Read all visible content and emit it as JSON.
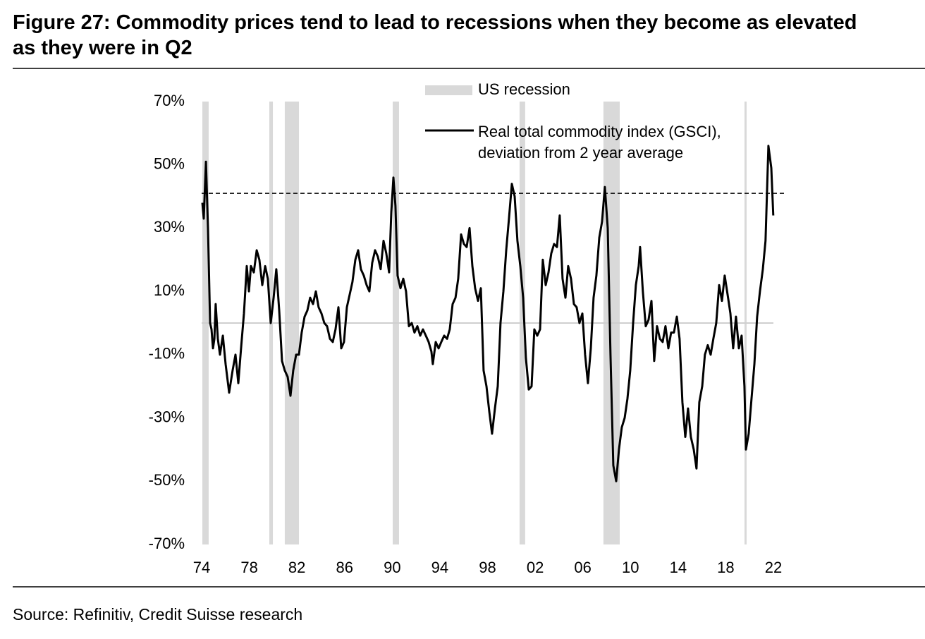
{
  "chart_data": {
    "type": "line",
    "title": "Figure 27: Commodity prices tend to lead to recessions when they become as elevated as they were in Q2",
    "source": "Source: Refinitiv, Credit Suisse research",
    "xlim": [
      1974,
      2022
    ],
    "ylim": [
      -70,
      70
    ],
    "xticks": [
      {
        "value": 1974,
        "label": "74"
      },
      {
        "value": 1978,
        "label": "78"
      },
      {
        "value": 1982,
        "label": "82"
      },
      {
        "value": 1986,
        "label": "86"
      },
      {
        "value": 1990,
        "label": "90"
      },
      {
        "value": 1994,
        "label": "94"
      },
      {
        "value": 1998,
        "label": "98"
      },
      {
        "value": 2002,
        "label": "02"
      },
      {
        "value": 2006,
        "label": "06"
      },
      {
        "value": 2010,
        "label": "10"
      },
      {
        "value": 2014,
        "label": "14"
      },
      {
        "value": 2018,
        "label": "18"
      },
      {
        "value": 2022,
        "label": "22"
      }
    ],
    "yticks": [
      {
        "value": 70,
        "label": "70%"
      },
      {
        "value": 50,
        "label": "50%"
      },
      {
        "value": 30,
        "label": "30%"
      },
      {
        "value": 10,
        "label": "10%"
      },
      {
        "value": -10,
        "label": "-10%"
      },
      {
        "value": -30,
        "label": "-30%"
      },
      {
        "value": -50,
        "label": "-50%"
      },
      {
        "value": -70,
        "label": "-70%"
      }
    ],
    "recessions": {
      "name": "US recession",
      "color": "#d9d9d9",
      "periods": [
        [
          1974.06,
          1974.59
        ],
        [
          1979.68,
          1979.98
        ],
        [
          1980.98,
          1982.17
        ],
        [
          1990.04,
          1990.57
        ],
        [
          2000.69,
          2001.16
        ],
        [
          2007.73,
          2009.1
        ],
        [
          2019.57,
          2019.75
        ]
      ]
    },
    "reference_lines": [
      {
        "value": 0,
        "style": "solid",
        "color": "#cfcfcf"
      },
      {
        "value": 41,
        "style": "dashed",
        "color": "#000000"
      }
    ],
    "series": [
      {
        "name": "Real total commodity index (GSCI), deviation from 2 year average",
        "color": "#000000",
        "x": [
          1974.06,
          1974.18,
          1974.36,
          1974.53,
          1974.71,
          1974.83,
          1974.95,
          1975.07,
          1975.18,
          1975.36,
          1975.54,
          1975.78,
          1976.01,
          1976.31,
          1976.6,
          1976.84,
          1977.08,
          1977.31,
          1977.55,
          1977.79,
          1977.97,
          1978.14,
          1978.38,
          1978.62,
          1978.85,
          1979.09,
          1979.33,
          1979.56,
          1979.8,
          1980.04,
          1980.27,
          1980.51,
          1980.75,
          1980.98,
          1981.22,
          1981.46,
          1981.69,
          1981.93,
          1982.17,
          1982.4,
          1982.64,
          1982.88,
          1983.11,
          1983.35,
          1983.59,
          1983.82,
          1984.06,
          1984.3,
          1984.53,
          1984.77,
          1985.01,
          1985.24,
          1985.48,
          1985.72,
          1985.95,
          1986.19,
          1986.43,
          1986.66,
          1986.9,
          1987.14,
          1987.37,
          1987.61,
          1987.85,
          1988.08,
          1988.32,
          1988.56,
          1988.79,
          1989.03,
          1989.27,
          1989.5,
          1989.74,
          1989.92,
          1990.1,
          1990.27,
          1990.45,
          1990.69,
          1990.93,
          1991.16,
          1991.4,
          1991.64,
          1991.87,
          1992.11,
          1992.35,
          1992.58,
          1992.82,
          1993.06,
          1993.29,
          1993.41,
          1993.65,
          1993.89,
          1994.12,
          1994.36,
          1994.6,
          1994.83,
          1995.07,
          1995.31,
          1995.54,
          1995.78,
          1996.02,
          1996.25,
          1996.49,
          1996.73,
          1996.96,
          1997.2,
          1997.44,
          1997.67,
          1997.91,
          1998.15,
          1998.38,
          1998.62,
          1998.86,
          1999.09,
          1999.33,
          1999.57,
          1999.8,
          2000.04,
          2000.28,
          2000.51,
          2000.75,
          2000.99,
          2001.22,
          2001.46,
          2001.7,
          2001.93,
          2002.17,
          2002.41,
          2002.64,
          2002.88,
          2003.12,
          2003.35,
          2003.59,
          2003.83,
          2004.06,
          2004.3,
          2004.54,
          2004.77,
          2005.01,
          2005.25,
          2005.48,
          2005.72,
          2005.96,
          2006.19,
          2006.43,
          2006.67,
          2006.9,
          2007.14,
          2007.38,
          2007.61,
          2007.85,
          2008.09,
          2008.32,
          2008.56,
          2008.8,
          2009.03,
          2009.27,
          2009.51,
          2009.74,
          2009.98,
          2010.22,
          2010.45,
          2010.69,
          2010.81,
          2011.04,
          2011.28,
          2011.52,
          2011.76,
          2011.99,
          2012.23,
          2012.47,
          2012.7,
          2012.94,
          2013.18,
          2013.41,
          2013.65,
          2013.89,
          2014.12,
          2014.36,
          2014.6,
          2014.83,
          2015.07,
          2015.31,
          2015.54,
          2015.78,
          2016.02,
          2016.25,
          2016.49,
          2016.73,
          2016.96,
          2017.2,
          2017.44,
          2017.68,
          2017.91,
          2018.15,
          2018.39,
          2018.62,
          2018.86,
          2019.1,
          2019.33,
          2019.57,
          2019.69,
          2019.92,
          2020.16,
          2020.4,
          2020.63,
          2020.87,
          2021.11,
          2021.34,
          2021.58,
          2021.82,
          2021.99
        ],
        "values": [
          38,
          33,
          51,
          30,
          0,
          -2,
          -8,
          -5,
          6,
          -5,
          -10,
          -4,
          -13,
          -22,
          -15,
          -10,
          -19,
          -8,
          3,
          18,
          10,
          18,
          16,
          23,
          20,
          12,
          18,
          14,
          0,
          8,
          17,
          4,
          -12,
          -15,
          -17,
          -23,
          -15,
          -10,
          -10,
          -3,
          2,
          4,
          8,
          6,
          10,
          5,
          3,
          0,
          -1,
          -5,
          -6,
          -2,
          5,
          -8,
          -6,
          5,
          9,
          13,
          20,
          23,
          17,
          15,
          12,
          10,
          19,
          23,
          21,
          17,
          26,
          22,
          16,
          35,
          46,
          37,
          15,
          11,
          14,
          10,
          -1,
          0,
          -3,
          -1,
          -4,
          -2,
          -4,
          -6,
          -9,
          -13,
          -6,
          -8,
          -6,
          -4,
          -5,
          -2,
          6,
          8,
          14,
          28,
          25,
          24,
          30,
          18,
          11,
          7,
          11,
          -15,
          -20,
          -28,
          -35,
          -27,
          -20,
          0,
          10,
          23,
          33,
          44,
          40,
          26,
          18,
          8,
          -11,
          -21,
          -20,
          -2,
          -4,
          -2,
          20,
          12,
          16,
          22,
          25,
          24,
          34,
          14,
          8,
          18,
          14,
          6,
          5,
          0,
          3,
          -10,
          -19,
          -8,
          8,
          15,
          27,
          32,
          43,
          30,
          -10,
          -45,
          -50,
          -40,
          -33,
          -30,
          -24,
          -15,
          0,
          12,
          18,
          24,
          10,
          -1,
          1,
          7,
          -12,
          -1,
          -5,
          -6,
          -1,
          -8,
          -3,
          -3,
          2,
          -5,
          -25,
          -36,
          -27,
          -36,
          -40,
          -46,
          -25,
          -20,
          -10,
          -7,
          -10,
          -5,
          0,
          12,
          7,
          15,
          9,
          3,
          -8,
          2,
          -8,
          -4,
          -20,
          -40,
          -35,
          -24,
          -13,
          2,
          10,
          17,
          26,
          56,
          49,
          34
        ]
      }
    ]
  }
}
